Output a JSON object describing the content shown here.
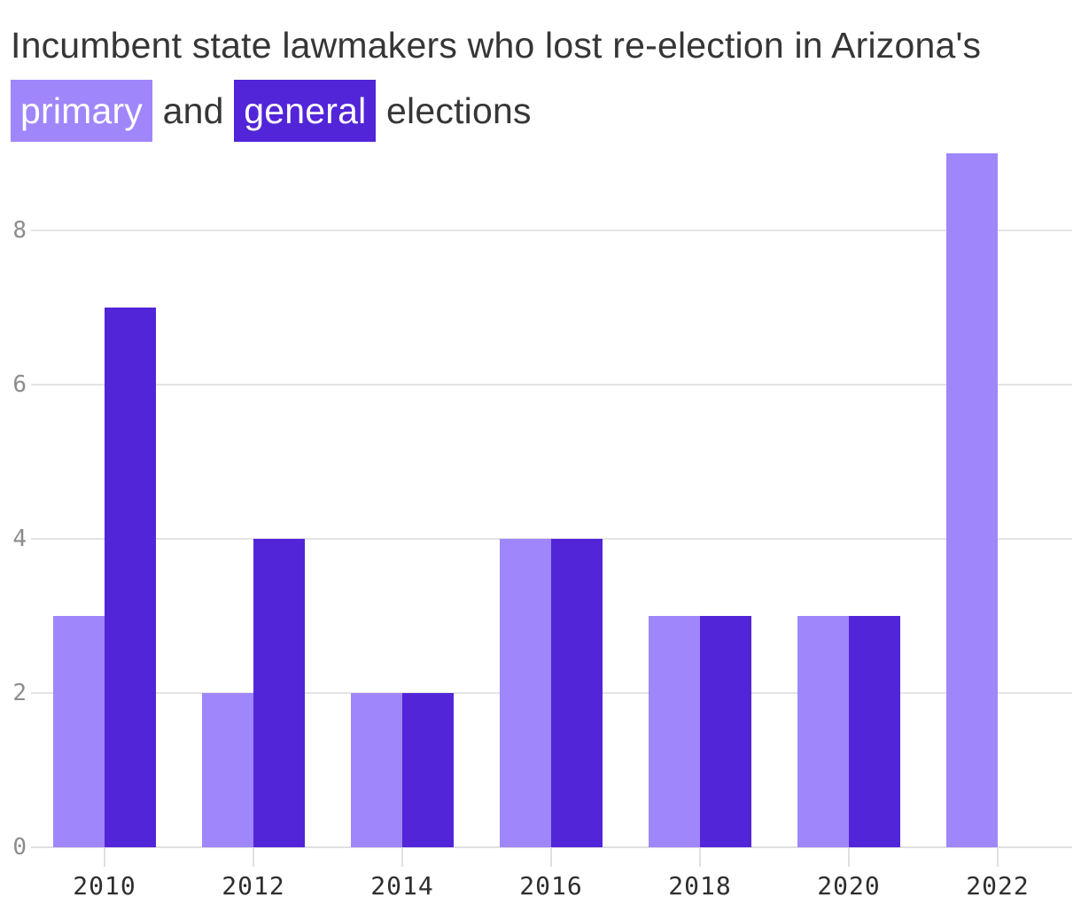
{
  "title": {
    "segments": [
      {
        "text": "Incumbent state lawmakers who lost re-election in Arizona's "
      },
      {
        "text": "primary",
        "highlight": "primary"
      },
      {
        "text": " and "
      },
      {
        "text": "general",
        "highlight": "general"
      },
      {
        "text": " elections"
      }
    ]
  },
  "colors": {
    "primary": "#a086fb",
    "general": "#5325d8",
    "gridline": "#e4e4e4",
    "axis_line": "#e0e0e0",
    "tick": "#e0e0e0",
    "y_label_text": "#8c8c8c",
    "x_label_text": "#2e2e2e",
    "title_text": "#363636",
    "highlight_text": "#ffffff",
    "background": "#ffffff"
  },
  "chart_data": {
    "type": "bar",
    "title": "Incumbent state lawmakers who lost re-election in Arizona's primary and general elections",
    "categories": [
      "2010",
      "2012",
      "2014",
      "2016",
      "2018",
      "2020",
      "2022"
    ],
    "series": [
      {
        "name": "primary",
        "values": [
          3,
          2,
          2,
          4,
          3,
          3,
          9
        ]
      },
      {
        "name": "general",
        "values": [
          7,
          4,
          2,
          4,
          3,
          3,
          0
        ]
      }
    ],
    "xlabel": "",
    "ylabel": "",
    "ylim": [
      0,
      9
    ],
    "yticks": [
      0,
      2,
      4,
      6,
      8
    ],
    "grid": true,
    "legend_position": "inline-title-highlights"
  }
}
